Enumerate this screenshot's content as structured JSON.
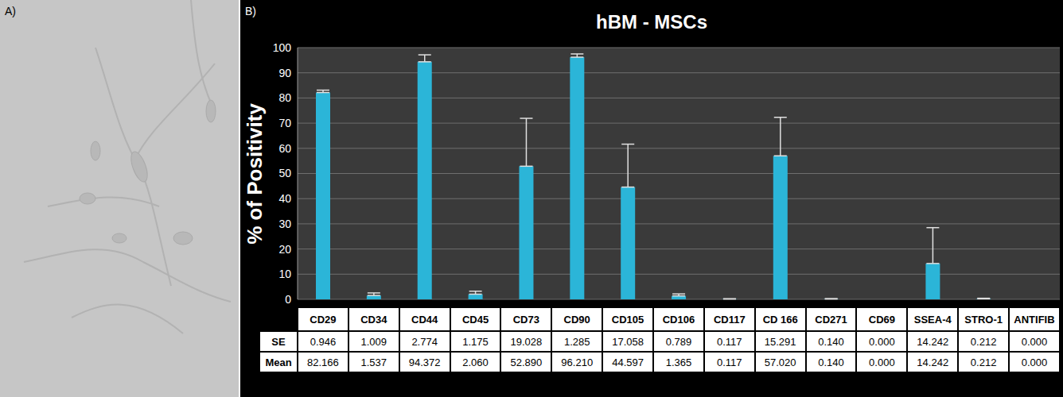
{
  "panel_labels": [
    "A)",
    "B)"
  ],
  "chart_data": {
    "type": "bar",
    "title": "hBM - MSCs",
    "y_label": "% of Positivity",
    "categories": [
      "CD29",
      "CD34",
      "CD44",
      "CD45",
      "CD73",
      "CD90",
      "CD105",
      "CD106",
      "CD117",
      "CD 166",
      "CD271",
      "CD69",
      "SSEA-4",
      "STRO-1",
      "ANTIFIB"
    ],
    "values": [
      82.166,
      1.537,
      94.372,
      2.06,
      52.89,
      96.21,
      44.597,
      1.365,
      0.117,
      57.02,
      0.14,
      0,
      14.242,
      0.212,
      0
    ],
    "error": [
      0.946,
      1.009,
      2.774,
      1.175,
      19.028,
      1.285,
      17.058,
      0.789,
      0.117,
      15.291,
      0.14,
      0,
      14.242,
      0.212,
      0
    ],
    "color": "#2bb5d8",
    "ylim": [
      0,
      100
    ],
    "yticks": [
      0,
      10,
      20,
      30,
      40,
      50,
      60,
      70,
      80,
      90,
      100
    ],
    "grid": true,
    "table": {
      "row_labels": [
        "SE",
        "Mean"
      ],
      "rows": [
        [
          "0.946",
          "1.009",
          "2.774",
          "1.175",
          "19.028",
          "1.285",
          "17.058",
          "0.789",
          "0.117",
          "15.291",
          "0.140",
          "0.000",
          "14.242",
          "0.212",
          "0.000"
        ],
        [
          "82.166",
          "1.537",
          "94.372",
          "2.060",
          "52.890",
          "96.210",
          "44.597",
          "1.365",
          "0.117",
          "57.020",
          "0.140",
          "0.000",
          "14.242",
          "0.212",
          "0.000"
        ]
      ]
    }
  }
}
